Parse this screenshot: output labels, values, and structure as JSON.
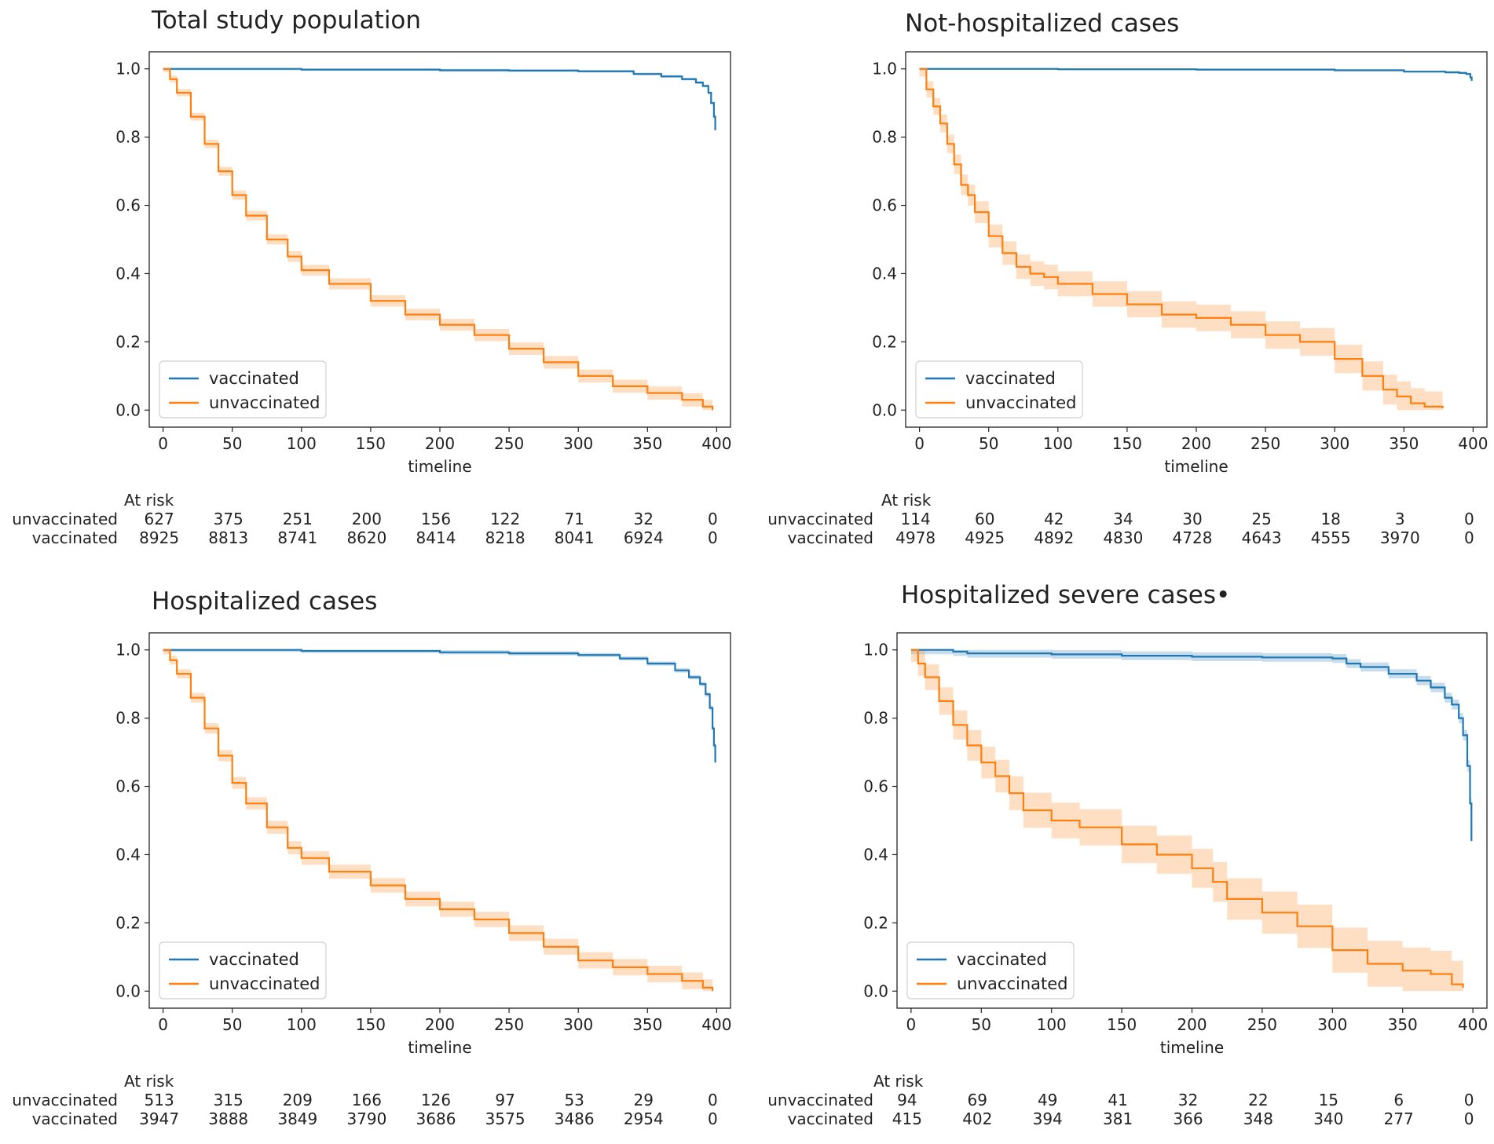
{
  "colors": {
    "vaccinated": "#1f77b4",
    "unvaccinated": "#ff7f0e"
  },
  "risk_table": {
    "header": "At risk"
  },
  "chart_data": [
    {
      "type": "line",
      "title": "Total study population",
      "xlabel": "timeline",
      "ylabel": "",
      "xlim": [
        -10,
        410
      ],
      "ylim": [
        -0.05,
        1.05
      ],
      "xticks": [
        "0",
        "50",
        "100",
        "150",
        "200",
        "250",
        "300",
        "350",
        "400"
      ],
      "yticks": [
        "0.0",
        "0.2",
        "0.4",
        "0.6",
        "0.8",
        "1.0"
      ],
      "legend": {
        "position": "lower-left",
        "entries": [
          "vaccinated",
          "unvaccinated"
        ]
      },
      "series": [
        {
          "name": "vaccinated",
          "band": 0.008,
          "x": [
            0,
            100,
            200,
            250,
            300,
            340,
            360,
            375,
            385,
            390,
            394,
            396,
            398,
            399
          ],
          "y": [
            1.0,
            0.998,
            0.996,
            0.995,
            0.993,
            0.985,
            0.978,
            0.97,
            0.96,
            0.95,
            0.93,
            0.9,
            0.86,
            0.82
          ]
        },
        {
          "name": "unvaccinated",
          "band": 0.02,
          "x": [
            0,
            5,
            10,
            20,
            30,
            40,
            50,
            60,
            75,
            90,
            100,
            120,
            150,
            175,
            200,
            225,
            250,
            275,
            300,
            325,
            350,
            375,
            390,
            397
          ],
          "y": [
            1.0,
            0.97,
            0.93,
            0.86,
            0.78,
            0.7,
            0.63,
            0.57,
            0.5,
            0.45,
            0.41,
            0.37,
            0.32,
            0.28,
            0.25,
            0.22,
            0.18,
            0.14,
            0.1,
            0.07,
            0.05,
            0.03,
            0.01,
            0.0
          ]
        }
      ],
      "at_risk": {
        "times": [
          0,
          50,
          100,
          150,
          200,
          250,
          300,
          350,
          400
        ],
        "rows": [
          {
            "label": "unvaccinated",
            "values": [
              "627",
              "375",
              "251",
              "200",
              "156",
              "122",
              "71",
              "32",
              "0"
            ]
          },
          {
            "label": "vaccinated",
            "values": [
              "8925",
              "8813",
              "8741",
              "8620",
              "8414",
              "8218",
              "8041",
              "6924",
              "0"
            ]
          }
        ]
      }
    },
    {
      "type": "line",
      "title": "Not-hospitalized cases",
      "xlabel": "timeline",
      "ylabel": "",
      "xlim": [
        -10,
        410
      ],
      "ylim": [
        -0.05,
        1.05
      ],
      "xticks": [
        "0",
        "50",
        "100",
        "150",
        "200",
        "250",
        "300",
        "350",
        "400"
      ],
      "yticks": [
        "0.0",
        "0.2",
        "0.4",
        "0.6",
        "0.8",
        "1.0"
      ],
      "legend": {
        "position": "lower-left",
        "entries": [
          "vaccinated",
          "unvaccinated"
        ]
      },
      "series": [
        {
          "name": "vaccinated",
          "band": 0.006,
          "x": [
            0,
            100,
            200,
            300,
            350,
            380,
            390,
            395,
            398,
            399
          ],
          "y": [
            1.0,
            0.999,
            0.998,
            0.996,
            0.992,
            0.99,
            0.988,
            0.985,
            0.975,
            0.965
          ]
        },
        {
          "name": "unvaccinated",
          "band": 0.045,
          "x": [
            0,
            5,
            10,
            15,
            20,
            25,
            30,
            35,
            40,
            50,
            60,
            70,
            80,
            90,
            100,
            125,
            150,
            175,
            200,
            225,
            250,
            275,
            300,
            320,
            335,
            345,
            355,
            365,
            378
          ],
          "y": [
            1.0,
            0.94,
            0.89,
            0.84,
            0.78,
            0.72,
            0.66,
            0.63,
            0.58,
            0.51,
            0.46,
            0.42,
            0.4,
            0.39,
            0.37,
            0.34,
            0.31,
            0.28,
            0.27,
            0.25,
            0.22,
            0.2,
            0.15,
            0.1,
            0.06,
            0.04,
            0.02,
            0.01,
            0.005
          ]
        }
      ],
      "at_risk": {
        "times": [
          0,
          50,
          100,
          150,
          200,
          250,
          300,
          350,
          400
        ],
        "rows": [
          {
            "label": "unvaccinated",
            "values": [
              "114",
              "60",
              "42",
              "34",
              "30",
              "25",
              "18",
              "3",
              "0"
            ]
          },
          {
            "label": "vaccinated",
            "values": [
              "4978",
              "4925",
              "4892",
              "4830",
              "4728",
              "4643",
              "4555",
              "3970",
              "0"
            ]
          }
        ]
      }
    },
    {
      "type": "line",
      "title": "Hospitalized cases",
      "xlabel": "timeline",
      "ylabel": "",
      "xlim": [
        -10,
        410
      ],
      "ylim": [
        -0.05,
        1.05
      ],
      "xticks": [
        "0",
        "50",
        "100",
        "150",
        "200",
        "250",
        "300",
        "350",
        "400"
      ],
      "yticks": [
        "0.0",
        "0.2",
        "0.4",
        "0.6",
        "0.8",
        "1.0"
      ],
      "legend": {
        "position": "lower-left",
        "entries": [
          "vaccinated",
          "unvaccinated"
        ]
      },
      "series": [
        {
          "name": "vaccinated",
          "band": 0.012,
          "x": [
            0,
            100,
            200,
            250,
            300,
            330,
            350,
            370,
            380,
            388,
            392,
            395,
            397,
            398,
            399
          ],
          "y": [
            1.0,
            0.997,
            0.993,
            0.99,
            0.985,
            0.975,
            0.96,
            0.94,
            0.92,
            0.9,
            0.87,
            0.83,
            0.77,
            0.72,
            0.67
          ]
        },
        {
          "name": "unvaccinated",
          "band": 0.025,
          "x": [
            0,
            5,
            10,
            20,
            30,
            40,
            50,
            60,
            75,
            90,
            100,
            120,
            150,
            175,
            200,
            225,
            250,
            275,
            300,
            325,
            350,
            375,
            390,
            397
          ],
          "y": [
            1.0,
            0.97,
            0.93,
            0.86,
            0.77,
            0.69,
            0.61,
            0.55,
            0.48,
            0.42,
            0.39,
            0.35,
            0.31,
            0.27,
            0.24,
            0.21,
            0.17,
            0.13,
            0.09,
            0.07,
            0.05,
            0.03,
            0.01,
            0.0
          ]
        }
      ],
      "at_risk": {
        "times": [
          0,
          50,
          100,
          150,
          200,
          250,
          300,
          350,
          400
        ],
        "rows": [
          {
            "label": "unvaccinated",
            "values": [
              "513",
              "315",
              "209",
              "166",
              "126",
              "97",
              "53",
              "29",
              "0"
            ]
          },
          {
            "label": "vaccinated",
            "values": [
              "3947",
              "3888",
              "3849",
              "3790",
              "3686",
              "3575",
              "3486",
              "2954",
              "0"
            ]
          }
        ]
      }
    },
    {
      "type": "line",
      "title": "Hospitalized severe cases•",
      "xlabel": "timeline",
      "ylabel": "",
      "xlim": [
        -10,
        410
      ],
      "ylim": [
        -0.05,
        1.05
      ],
      "xticks": [
        "0",
        "50",
        "100",
        "150",
        "200",
        "250",
        "300",
        "350",
        "400"
      ],
      "yticks": [
        "0.0",
        "0.2",
        "0.4",
        "0.6",
        "0.8",
        "1.0"
      ],
      "legend": {
        "position": "lower-left",
        "entries": [
          "vaccinated",
          "unvaccinated"
        ]
      },
      "series": [
        {
          "name": "vaccinated",
          "band": 0.025,
          "x": [
            0,
            20,
            30,
            40,
            50,
            100,
            150,
            200,
            250,
            300,
            310,
            320,
            340,
            360,
            370,
            380,
            385,
            390,
            393,
            396,
            398,
            399
          ],
          "y": [
            1.0,
            1.0,
            0.995,
            0.99,
            0.99,
            0.987,
            0.983,
            0.98,
            0.978,
            0.975,
            0.96,
            0.95,
            0.93,
            0.91,
            0.89,
            0.86,
            0.84,
            0.8,
            0.75,
            0.66,
            0.55,
            0.44
          ]
        },
        {
          "name": "unvaccinated",
          "band": 0.07,
          "x": [
            0,
            5,
            10,
            20,
            30,
            40,
            50,
            60,
            70,
            80,
            100,
            120,
            150,
            175,
            200,
            215,
            225,
            250,
            275,
            300,
            325,
            350,
            370,
            385,
            393
          ],
          "y": [
            1.0,
            0.96,
            0.92,
            0.85,
            0.78,
            0.72,
            0.67,
            0.63,
            0.58,
            0.53,
            0.5,
            0.48,
            0.43,
            0.4,
            0.36,
            0.32,
            0.27,
            0.23,
            0.19,
            0.12,
            0.08,
            0.06,
            0.05,
            0.02,
            0.01
          ]
        }
      ],
      "at_risk": {
        "times": [
          0,
          50,
          100,
          150,
          200,
          250,
          300,
          350,
          400
        ],
        "rows": [
          {
            "label": "unvaccinated",
            "values": [
              "94",
              "69",
              "49",
              "41",
              "32",
              "22",
              "15",
              "6",
              "0"
            ]
          },
          {
            "label": "vaccinated",
            "values": [
              "415",
              "402",
              "394",
              "381",
              "366",
              "348",
              "340",
              "277",
              "0"
            ]
          }
        ]
      }
    }
  ]
}
